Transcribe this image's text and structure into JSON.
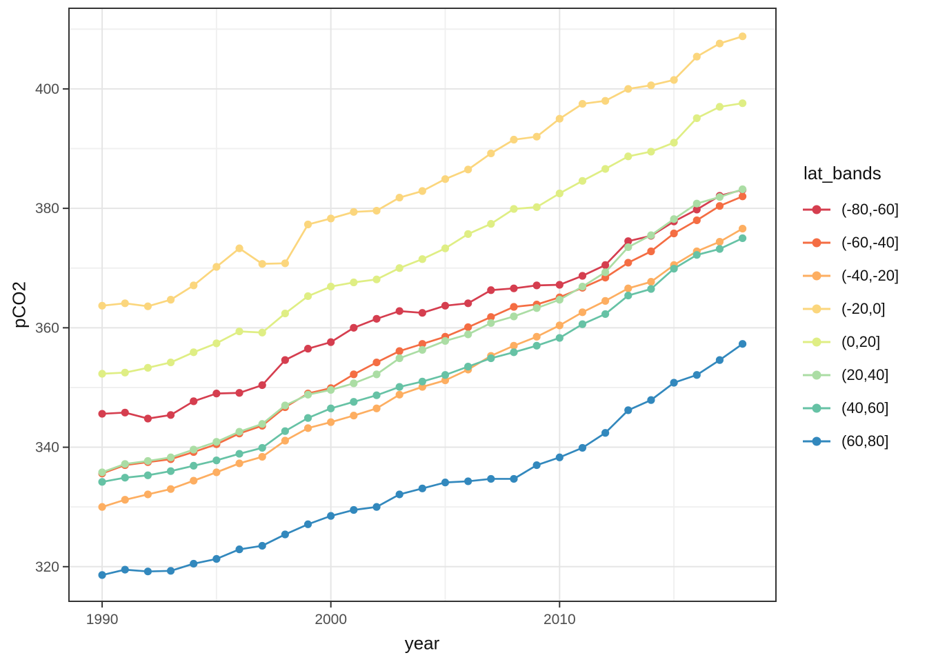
{
  "chart_data": {
    "type": "line",
    "title": "",
    "xlabel": "year",
    "ylabel": "pCO2",
    "legend_title": "lat_bands",
    "legend_position": "right",
    "grid": true,
    "x_ticks": [
      1990,
      2000,
      2010
    ],
    "x_minor_gridlines": [
      1995,
      2005,
      2015
    ],
    "y_ticks": [
      320,
      340,
      360,
      380,
      400
    ],
    "y_minor_gridlines": [
      330,
      350,
      370,
      390,
      410
    ],
    "xlim": [
      1988.55,
      2019.46
    ],
    "ylim": [
      314.2,
      413.5
    ],
    "x": [
      1990,
      1991,
      1992,
      1993,
      1994,
      1995,
      1996,
      1997,
      1998,
      1999,
      2000,
      2001,
      2002,
      2003,
      2004,
      2005,
      2006,
      2007,
      2008,
      2009,
      2010,
      2011,
      2012,
      2013,
      2014,
      2015,
      2016,
      2017,
      2018
    ],
    "series": [
      {
        "name": "(-80,-60]",
        "color": "#d53e4f",
        "values": [
          345.6,
          345.8,
          344.8,
          345.4,
          347.7,
          349.0,
          349.1,
          350.4,
          354.6,
          356.5,
          357.6,
          360.0,
          361.5,
          362.8,
          362.5,
          363.7,
          364.1,
          366.3,
          366.6,
          367.1,
          367.2,
          368.7,
          370.5,
          374.5,
          375.4,
          377.8,
          379.8,
          382.1,
          383.1
        ]
      },
      {
        "name": "(-60,-40]",
        "color": "#f46d43",
        "values": [
          335.6,
          337.0,
          337.5,
          338.0,
          339.2,
          340.5,
          342.3,
          343.6,
          346.7,
          349.0,
          349.9,
          352.2,
          354.2,
          356.1,
          357.3,
          358.5,
          360.1,
          361.8,
          363.5,
          363.9,
          365.1,
          366.7,
          368.4,
          370.9,
          372.8,
          375.8,
          378.0,
          380.4,
          382.0
        ]
      },
      {
        "name": "(-40,-20]",
        "color": "#fdae61",
        "values": [
          330.0,
          331.2,
          332.1,
          333.0,
          334.4,
          335.8,
          337.3,
          338.4,
          341.1,
          343.2,
          344.2,
          345.3,
          346.5,
          348.8,
          350.1,
          351.2,
          353.0,
          355.3,
          357.0,
          358.5,
          360.4,
          362.6,
          364.5,
          366.6,
          367.7,
          370.5,
          372.8,
          374.4,
          376.6
        ]
      },
      {
        "name": "(-20,0]",
        "color": "#fbd67d",
        "values": [
          363.7,
          364.1,
          363.6,
          364.7,
          367.1,
          370.2,
          373.3,
          370.7,
          370.8,
          377.3,
          378.3,
          379.4,
          379.6,
          381.8,
          382.9,
          384.9,
          386.5,
          389.2,
          391.5,
          392.0,
          395.0,
          397.5,
          398.0,
          400.0,
          400.6,
          401.5,
          405.4,
          407.6,
          408.8
        ]
      },
      {
        "name": "(0,20]",
        "color": "#dfee84",
        "values": [
          352.3,
          352.5,
          353.3,
          354.2,
          355.9,
          357.4,
          359.4,
          359.2,
          362.4,
          365.3,
          366.9,
          367.6,
          368.1,
          370.0,
          371.5,
          373.3,
          375.7,
          377.4,
          379.9,
          380.2,
          382.5,
          384.6,
          386.6,
          388.7,
          389.5,
          391.0,
          395.1,
          397.0,
          397.6
        ]
      },
      {
        "name": "(20,40]",
        "color": "#abdda4",
        "values": [
          335.8,
          337.2,
          337.7,
          338.3,
          339.6,
          340.9,
          342.6,
          343.9,
          347.0,
          348.8,
          349.6,
          350.7,
          352.2,
          354.9,
          356.3,
          357.8,
          358.9,
          360.8,
          361.9,
          363.3,
          364.7,
          366.9,
          369.3,
          373.5,
          375.5,
          378.2,
          380.8,
          381.9,
          383.2
        ]
      },
      {
        "name": "(40,60]",
        "color": "#66c2a5",
        "values": [
          334.2,
          334.9,
          335.3,
          336.0,
          336.9,
          337.8,
          338.9,
          339.9,
          342.7,
          344.9,
          346.5,
          347.6,
          348.7,
          350.1,
          351.0,
          352.1,
          353.5,
          354.9,
          355.9,
          357.0,
          358.3,
          360.6,
          362.3,
          365.4,
          366.5,
          369.9,
          372.2,
          373.2,
          375.0
        ]
      },
      {
        "name": "(60,80]",
        "color": "#3288bd",
        "values": [
          318.6,
          319.5,
          319.2,
          319.3,
          320.5,
          321.3,
          322.9,
          323.5,
          325.4,
          327.1,
          328.5,
          329.5,
          330.0,
          332.1,
          333.1,
          334.1,
          334.3,
          334.7,
          334.7,
          337.0,
          338.3,
          339.9,
          342.4,
          346.2,
          347.9,
          350.8,
          352.1,
          354.6,
          357.3
        ]
      }
    ]
  },
  "style": {
    "panel_border_color": "#333333",
    "grid_major_color": "#e5e5e5",
    "grid_minor_color": "#f0f0f0",
    "tick_mark_color": "#333333",
    "tick_label_color": "#4d4d4d",
    "background": "#ffffff"
  }
}
